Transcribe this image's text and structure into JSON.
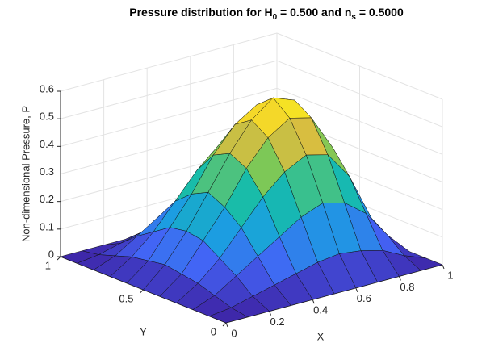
{
  "chart_data": {
    "type": "surface",
    "title": [
      "Pressure distribution for H",
      "0",
      " = 0.500 and n",
      "s",
      " = 0.5000"
    ],
    "xlabel": "X",
    "ylabel": "Y",
    "zlabel": "Non-dimensional Pressure, P",
    "x": [
      0,
      0.1,
      0.2,
      0.3,
      0.4,
      0.5,
      0.6,
      0.7,
      0.8,
      0.9,
      1
    ],
    "y": [
      0,
      0.1,
      0.2,
      0.3,
      0.4,
      0.5,
      0.6,
      0.7,
      0.8,
      0.9,
      1
    ],
    "z": [
      [
        0,
        0,
        0,
        0,
        0,
        0,
        0,
        0,
        0,
        0,
        0
      ],
      [
        0,
        0.01,
        0.03,
        0.05,
        0.07,
        0.09,
        0.1,
        0.09,
        0.07,
        0.03,
        0
      ],
      [
        0,
        0.03,
        0.08,
        0.13,
        0.18,
        0.23,
        0.26,
        0.24,
        0.18,
        0.08,
        0
      ],
      [
        0,
        0.05,
        0.12,
        0.21,
        0.3,
        0.37,
        0.41,
        0.39,
        0.29,
        0.12,
        0
      ],
      [
        0,
        0.06,
        0.16,
        0.26,
        0.38,
        0.47,
        0.52,
        0.5,
        0.37,
        0.16,
        0
      ],
      [
        0,
        0.07,
        0.17,
        0.29,
        0.41,
        0.51,
        0.57,
        0.54,
        0.4,
        0.17,
        0
      ],
      [
        0,
        0.06,
        0.16,
        0.26,
        0.38,
        0.47,
        0.52,
        0.5,
        0.37,
        0.16,
        0
      ],
      [
        0,
        0.05,
        0.12,
        0.21,
        0.3,
        0.37,
        0.41,
        0.39,
        0.29,
        0.12,
        0
      ],
      [
        0,
        0.03,
        0.08,
        0.13,
        0.18,
        0.23,
        0.26,
        0.24,
        0.18,
        0.08,
        0
      ],
      [
        0,
        0.01,
        0.03,
        0.05,
        0.07,
        0.09,
        0.1,
        0.09,
        0.07,
        0.03,
        0
      ],
      [
        0,
        0,
        0,
        0,
        0,
        0,
        0,
        0,
        0,
        0,
        0
      ]
    ],
    "xlim": [
      0,
      1
    ],
    "ylim": [
      0,
      1
    ],
    "zlim": [
      0,
      0.6
    ],
    "xticks": [
      0,
      0.2,
      0.4,
      0.6,
      0.8,
      1
    ],
    "yticks": [
      0,
      0.5,
      1
    ],
    "zticks": [
      0,
      0.1,
      0.2,
      0.3,
      0.4,
      0.5,
      0.6
    ],
    "grid": true,
    "colormap": [
      "#3e26a8",
      "#4363f6",
      "#1b9fe0",
      "#16bcab",
      "#7dc857",
      "#f0bb3a",
      "#f9fb15"
    ]
  }
}
